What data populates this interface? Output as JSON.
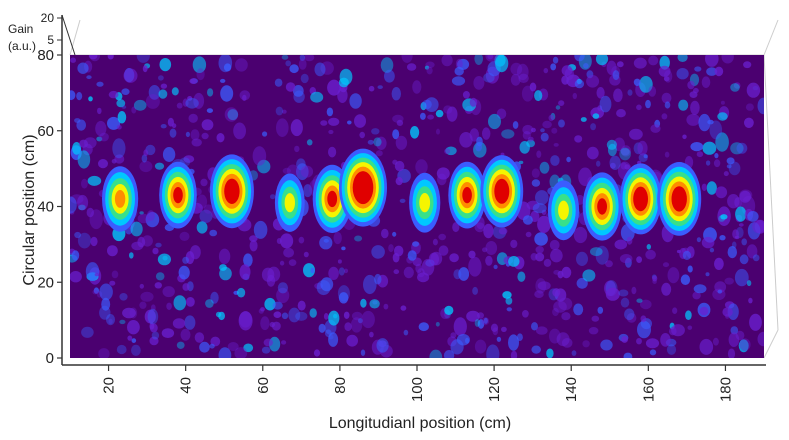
{
  "chart_data": {
    "type": "heatmap",
    "title": "",
    "xlabel": "Longitudianl position (cm)",
    "ylabel": "Circular position (cm)",
    "zlabel_lines": [
      "Gain",
      "(a.u.)"
    ],
    "xlim": [
      10,
      190
    ],
    "ylim": [
      0,
      80
    ],
    "x_ticks": [
      20,
      40,
      60,
      80,
      100,
      120,
      140,
      160,
      180
    ],
    "y_ticks": [
      0,
      20,
      40,
      60,
      80
    ],
    "z_ticks": [
      5,
      20
    ],
    "colormap": [
      "#4b0082",
      "#6a1fd0",
      "#3b5cff",
      "#00c8ff",
      "#38e08a",
      "#f5f500",
      "#ff8c00",
      "#e00000"
    ],
    "background_color": "#4b0070",
    "hotspots": [
      {
        "x": 23,
        "y": 42,
        "intensity": 0.55
      },
      {
        "x": 38,
        "y": 43,
        "intensity": 0.6
      },
      {
        "x": 52,
        "y": 44,
        "intensity": 0.85
      },
      {
        "x": 67,
        "y": 41,
        "intensity": 0.3
      },
      {
        "x": 78,
        "y": 42,
        "intensity": 0.65
      },
      {
        "x": 86,
        "y": 45,
        "intensity": 1.0
      },
      {
        "x": 102,
        "y": 41,
        "intensity": 0.35
      },
      {
        "x": 113,
        "y": 43,
        "intensity": 0.6
      },
      {
        "x": 122,
        "y": 44,
        "intensity": 0.8
      },
      {
        "x": 138,
        "y": 39,
        "intensity": 0.35
      },
      {
        "x": 148,
        "y": 40,
        "intensity": 0.65
      },
      {
        "x": 158,
        "y": 42,
        "intensity": 0.75
      },
      {
        "x": 168,
        "y": 42,
        "intensity": 0.85
      }
    ]
  }
}
